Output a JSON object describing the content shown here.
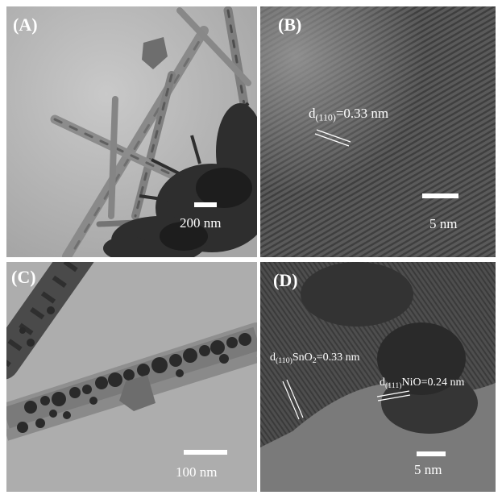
{
  "figure": {
    "panels": [
      {
        "label": "(A)",
        "scale_text": "200 nm"
      },
      {
        "label": "(B)",
        "annotation": {
          "d": "d",
          "sub": "(110)",
          "rest": "=0.33 nm"
        },
        "scale_text": "5 nm"
      },
      {
        "label": "(C)",
        "scale_text": "100 nm"
      },
      {
        "label": "(D)",
        "annotation_sno2": {
          "d": "d",
          "sub": "(110)",
          "mid": "SnO",
          "sub2": "2",
          "rest": "=0.33 nm"
        },
        "annotation_nio": {
          "d": "d",
          "sub": "(111)",
          "rest": "NiO=0.24 nm"
        },
        "scale_text": "5 nm"
      }
    ]
  },
  "colors": {
    "background": "#ffffff",
    "label_text": "#ffffff"
  }
}
